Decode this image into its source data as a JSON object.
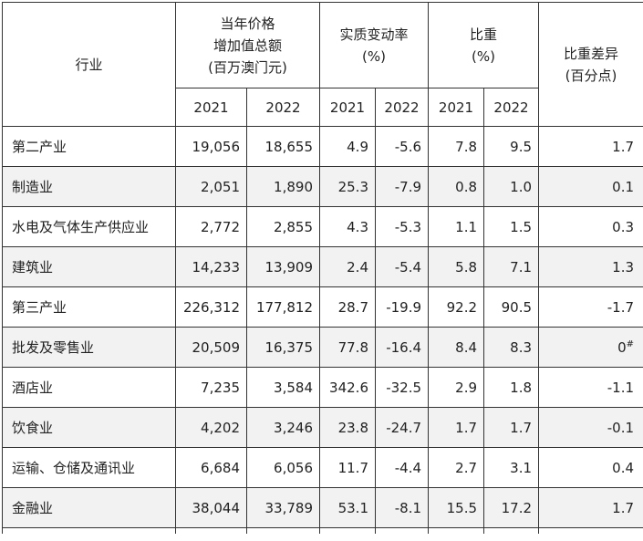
{
  "header": {
    "industry": "行业",
    "value_added": [
      "当年价格",
      "增加值总额",
      "(百万澳门元)"
    ],
    "real_change": [
      "实质变动率",
      "(%)"
    ],
    "share": [
      "比重",
      "(%)"
    ],
    "share_diff": [
      "比重差异",
      "(百分点)"
    ],
    "years": [
      "2021",
      "2022",
      "2021",
      "2022",
      "2021",
      "2022"
    ]
  },
  "rows": [
    {
      "industry": "第二产业",
      "va2021": "19,056",
      "va2022": "18,655",
      "rc2021": "4.9",
      "rc2022": "-5.6",
      "sh2021": "7.8",
      "sh2022": "9.5",
      "diff": "1.7",
      "note": ""
    },
    {
      "industry": "制造业",
      "va2021": "2,051",
      "va2022": "1,890",
      "rc2021": "25.3",
      "rc2022": "-7.9",
      "sh2021": "0.8",
      "sh2022": "1.0",
      "diff": "0.1",
      "note": ""
    },
    {
      "industry": "水电及气体生产供应业",
      "va2021": "2,772",
      "va2022": "2,855",
      "rc2021": "4.3",
      "rc2022": "-5.3",
      "sh2021": "1.1",
      "sh2022": "1.5",
      "diff": "0.3",
      "note": ""
    },
    {
      "industry": "建筑业",
      "va2021": "14,233",
      "va2022": "13,909",
      "rc2021": "2.4",
      "rc2022": "-5.4",
      "sh2021": "5.8",
      "sh2022": "7.1",
      "diff": "1.3",
      "note": ""
    },
    {
      "industry": "第三产业",
      "va2021": "226,312",
      "va2022": "177,812",
      "rc2021": "28.7",
      "rc2022": "-19.9",
      "sh2021": "92.2",
      "sh2022": "90.5",
      "diff": "-1.7",
      "note": ""
    },
    {
      "industry": "批发及零售业",
      "va2021": "20,509",
      "va2022": "16,375",
      "rc2021": "77.8",
      "rc2022": "-16.4",
      "sh2021": "8.4",
      "sh2022": "8.3",
      "diff": "0",
      "note": "#"
    },
    {
      "industry": "酒店业",
      "va2021": "7,235",
      "va2022": "3,584",
      "rc2021": "342.6",
      "rc2022": "-32.5",
      "sh2021": "2.9",
      "sh2022": "1.8",
      "diff": "-1.1",
      "note": ""
    },
    {
      "industry": "饮食业",
      "va2021": "4,202",
      "va2022": "3,246",
      "rc2021": "23.8",
      "rc2022": "-24.7",
      "sh2021": "1.7",
      "sh2022": "1.7",
      "diff": "-0.1",
      "note": ""
    },
    {
      "industry": "运输、仓储及通讯业",
      "va2021": "6,684",
      "va2022": "6,056",
      "rc2021": "11.7",
      "rc2022": "-4.4",
      "sh2021": "2.7",
      "sh2022": "3.1",
      "diff": "0.4",
      "note": ""
    },
    {
      "industry": "金融业",
      "va2021": "38,044",
      "va2022": "33,789",
      "rc2021": "53.1",
      "rc2022": "-8.1",
      "sh2021": "15.5",
      "sh2022": "17.2",
      "diff": "1.7",
      "note": ""
    }
  ]
}
